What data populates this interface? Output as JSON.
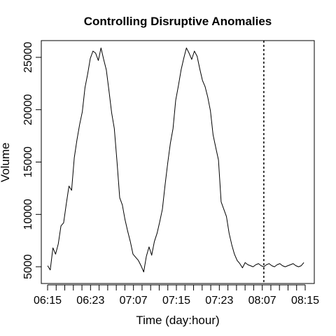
{
  "chart_data": {
    "type": "line",
    "title": "Controlling Disruptive Anomalies",
    "xlabel": "Time (day:hour)",
    "ylabel": "Volume",
    "ylim": [
      3400,
      26600
    ],
    "y_ticks": [
      5000,
      10000,
      15000,
      20000,
      25000
    ],
    "x_ticks": [
      "06:15",
      "06:23",
      "07:07",
      "07:15",
      "07:23",
      "08:07",
      "08:15"
    ],
    "x_minor_tick_count": 31,
    "xlim": [
      0,
      193
    ],
    "vertical_marker_x": 162,
    "vertical_marker_style": "dotted",
    "grid": false,
    "legend": "none",
    "series": [
      {
        "x": [
          0,
          2,
          4,
          6,
          8,
          10,
          12,
          14,
          16,
          18,
          20,
          22,
          24,
          26,
          28,
          30,
          32,
          34,
          36,
          38,
          40,
          42,
          44,
          46,
          48,
          50,
          52,
          54,
          56,
          58,
          60,
          62,
          64,
          66,
          68,
          70,
          72,
          74,
          76,
          78,
          80,
          82,
          84,
          86,
          88,
          90,
          92,
          94,
          96,
          98,
          100,
          102,
          104,
          106,
          108,
          110,
          112,
          114,
          116,
          118,
          120,
          122,
          124,
          126,
          128,
          130,
          132,
          134,
          136,
          138,
          140,
          142,
          144,
          146,
          148,
          150,
          152,
          154,
          156,
          158,
          160,
          162,
          164,
          166,
          168,
          170,
          172,
          174,
          176,
          178,
          180,
          182,
          184,
          186,
          188,
          190,
          192
        ],
        "values": [
          5100,
          4700,
          6800,
          6200,
          7200,
          8900,
          9200,
          11000,
          12700,
          12300,
          15400,
          17100,
          18600,
          19800,
          22100,
          23400,
          24900,
          25600,
          25400,
          24700,
          25900,
          24800,
          23800,
          21800,
          19700,
          18200,
          15000,
          11600,
          10900,
          9500,
          8400,
          7400,
          6200,
          5900,
          5600,
          5100,
          4500,
          6000,
          6900,
          6100,
          7400,
          8200,
          9300,
          10500,
          12800,
          14900,
          16800,
          18200,
          20900,
          22300,
          23800,
          24900,
          25900,
          25400,
          24800,
          25600,
          25100,
          23900,
          22800,
          22200,
          21200,
          19900,
          17600,
          16400,
          15200,
          11200,
          10500,
          9800,
          8200,
          7100,
          6200,
          5600,
          5300,
          4900,
          5400,
          5200,
          5100,
          5000,
          5200,
          5300,
          5100,
          5000,
          5200,
          5300,
          5100,
          5000,
          5200,
          5300,
          5100,
          5000,
          5100,
          5200,
          5300,
          5100,
          5000,
          5100,
          5400
        ]
      }
    ]
  }
}
